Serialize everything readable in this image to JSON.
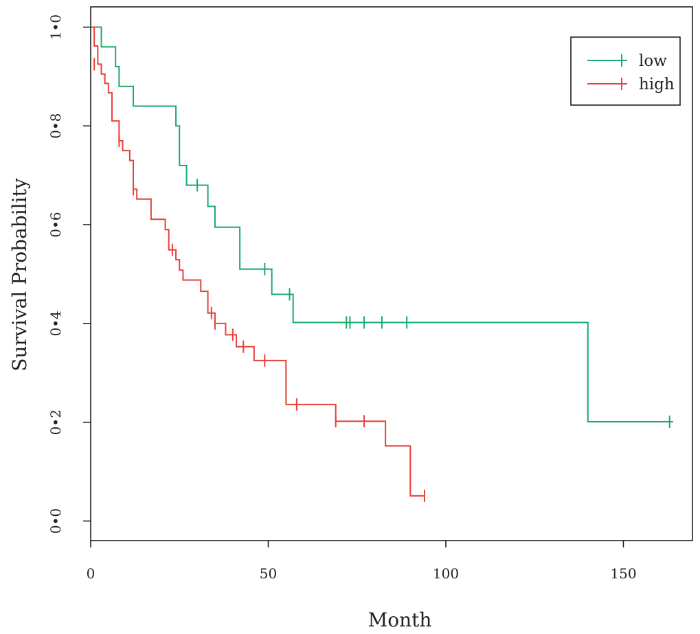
{
  "chart_data": {
    "type": "line",
    "subtype": "kaplan-meier step",
    "title": "",
    "xlabel": "Month",
    "ylabel": "Survival Probability",
    "xlim": [
      0,
      165
    ],
    "ylim": [
      0,
      1
    ],
    "x_ticks": [
      0,
      50,
      100,
      150
    ],
    "x_tick_labels": [
      "0",
      "50",
      "100",
      "150"
    ],
    "y_ticks": [
      0,
      0.2,
      0.4,
      0.6,
      0.8,
      1.0
    ],
    "y_tick_labels": [
      "0•0",
      "0•2",
      "0•4",
      "0•6",
      "0•8",
      "1•0"
    ],
    "grid": false,
    "legend_position": "top-right",
    "series": [
      {
        "name": "low",
        "color": "#1aaa6e",
        "steps": [
          [
            0,
            1.0
          ],
          [
            3,
            0.96
          ],
          [
            7,
            0.92
          ],
          [
            8,
            0.88
          ],
          [
            12,
            0.84
          ],
          [
            24,
            0.8
          ],
          [
            25,
            0.72
          ],
          [
            27,
            0.68
          ],
          [
            33,
            0.637
          ],
          [
            35,
            0.595
          ],
          [
            42,
            0.51
          ],
          [
            51,
            0.459
          ],
          [
            57,
            0.402
          ],
          [
            140,
            0.201
          ],
          [
            164,
            0.201
          ]
        ],
        "censored": [
          [
            30,
            0.68
          ],
          [
            49,
            0.51
          ],
          [
            56,
            0.459
          ],
          [
            72,
            0.402
          ],
          [
            73,
            0.402
          ],
          [
            77,
            0.402
          ],
          [
            82,
            0.402
          ],
          [
            89,
            0.402
          ],
          [
            163,
            0.201
          ]
        ]
      },
      {
        "name": "high",
        "color": "#e8403a",
        "steps": [
          [
            0,
            1.0
          ],
          [
            1,
            0.962
          ],
          [
            2,
            0.925
          ],
          [
            3,
            0.905
          ],
          [
            4,
            0.886
          ],
          [
            5,
            0.867
          ],
          [
            6,
            0.81
          ],
          [
            8,
            0.77
          ],
          [
            9,
            0.75
          ],
          [
            11,
            0.73
          ],
          [
            12,
            0.672
          ],
          [
            13,
            0.652
          ],
          [
            17,
            0.611
          ],
          [
            21,
            0.59
          ],
          [
            22,
            0.549
          ],
          [
            24,
            0.529
          ],
          [
            25,
            0.508
          ],
          [
            26,
            0.488
          ],
          [
            31,
            0.465
          ],
          [
            33,
            0.421
          ],
          [
            35,
            0.4
          ],
          [
            38,
            0.377
          ],
          [
            41,
            0.353
          ],
          [
            46,
            0.325
          ],
          [
            55,
            0.236
          ],
          [
            69,
            0.202
          ],
          [
            83,
            0.152
          ],
          [
            90,
            0.051
          ],
          [
            94,
            0.051
          ]
        ],
        "censored": [
          [
            1,
            0.925
          ],
          [
            8,
            0.77
          ],
          [
            12,
            0.672
          ],
          [
            23,
            0.549
          ],
          [
            34,
            0.421
          ],
          [
            35,
            0.4
          ],
          [
            40,
            0.377
          ],
          [
            43,
            0.353
          ],
          [
            49,
            0.325
          ],
          [
            58,
            0.236
          ],
          [
            69,
            0.202
          ],
          [
            77,
            0.202
          ],
          [
            94,
            0.051
          ]
        ]
      }
    ]
  }
}
